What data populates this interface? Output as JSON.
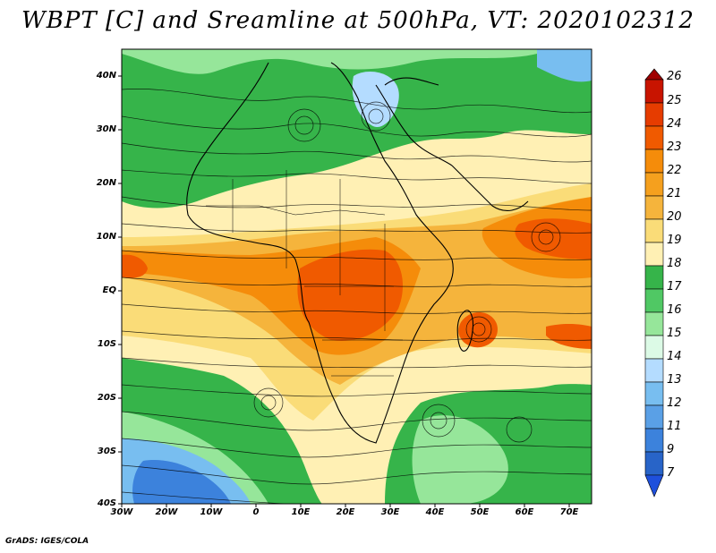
{
  "title": "WBPT [C] and Sreamline at 500hPa, VT: 2020102312",
  "footer": "GrADS: IGES/COLA",
  "map": {
    "lat_labels": [
      "40N",
      "30N",
      "20N",
      "10N",
      "EQ",
      "10S",
      "20S",
      "30S",
      "40S"
    ],
    "lon_labels": [
      "30W",
      "20W",
      "10W",
      "0",
      "10E",
      "20E",
      "30E",
      "40E",
      "50E",
      "60E",
      "70E"
    ],
    "lon_range": [
      -30,
      75
    ],
    "lat_range": [
      -40,
      45
    ]
  },
  "colorbar": {
    "levels": [
      "26",
      "25",
      "24",
      "23",
      "22",
      "21",
      "20",
      "19",
      "18",
      "17",
      "16",
      "15",
      "14",
      "13",
      "12",
      "11",
      "9",
      "7"
    ],
    "colors": [
      "#a00000",
      "#c81400",
      "#e63c00",
      "#f05a00",
      "#f58c0a",
      "#f5b43c",
      "#fadc78",
      "#fff0b4",
      "#36b44a",
      "#50c864",
      "#96e69a",
      "#dcfae6",
      "#b4dcff",
      "#78bef0",
      "#5aa0e6",
      "#3c82dc",
      "#2864c8"
    ]
  }
}
